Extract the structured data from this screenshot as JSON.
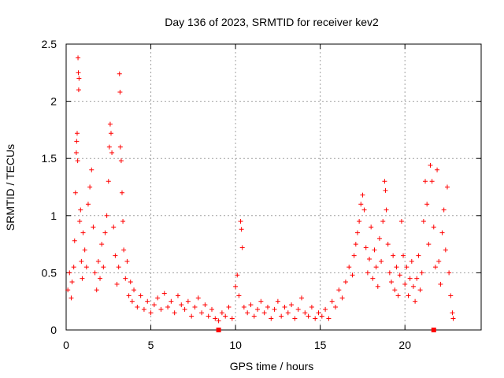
{
  "chart_data": {
    "type": "scatter",
    "title": "Day 136 of 2023, SRMTID for receiver kev2",
    "xlabel": "GPS time / hours",
    "ylabel": "SRMTID / TECUs",
    "xlim": [
      0,
      24.5
    ],
    "ylim": [
      0,
      2.5
    ],
    "x_ticks": [
      0,
      5,
      10,
      15,
      20
    ],
    "x_tick_labels": [
      "0",
      "5",
      "10",
      "15",
      "20"
    ],
    "y_ticks": [
      0,
      0.5,
      1,
      1.5,
      2,
      2.5
    ],
    "y_tick_labels": [
      "0",
      "0.5",
      "1",
      "1.5",
      "2",
      "2.5"
    ],
    "grid": true,
    "marker": "+",
    "color": "#ff0000",
    "series": [
      {
        "name": "SRMTID",
        "points": [
          [
            0.1,
            0.35
          ],
          [
            0.2,
            0.5
          ],
          [
            0.3,
            0.28
          ],
          [
            0.35,
            0.42
          ],
          [
            0.45,
            0.55
          ],
          [
            0.5,
            0.78
          ],
          [
            0.55,
            1.2
          ],
          [
            0.6,
            1.55
          ],
          [
            0.62,
            1.65
          ],
          [
            0.65,
            1.72
          ],
          [
            0.68,
            1.48
          ],
          [
            0.7,
            2.38
          ],
          [
            0.72,
            2.25
          ],
          [
            0.74,
            2.1
          ],
          [
            0.76,
            2.2
          ],
          [
            0.8,
            0.95
          ],
          [
            0.85,
            1.05
          ],
          [
            0.9,
            0.6
          ],
          [
            0.95,
            0.45
          ],
          [
            1.0,
            0.85
          ],
          [
            1.1,
            0.7
          ],
          [
            1.2,
            0.55
          ],
          [
            1.3,
            1.1
          ],
          [
            1.4,
            1.25
          ],
          [
            1.5,
            1.4
          ],
          [
            1.6,
            0.9
          ],
          [
            1.7,
            0.5
          ],
          [
            1.8,
            0.35
          ],
          [
            1.9,
            0.6
          ],
          [
            2.0,
            0.45
          ],
          [
            2.1,
            0.75
          ],
          [
            2.2,
            0.55
          ],
          [
            2.3,
            0.85
          ],
          [
            2.4,
            1.0
          ],
          [
            2.5,
            1.3
          ],
          [
            2.55,
            1.6
          ],
          [
            2.6,
            1.8
          ],
          [
            2.65,
            1.72
          ],
          [
            2.7,
            1.55
          ],
          [
            2.8,
            0.9
          ],
          [
            2.9,
            0.65
          ],
          [
            3.0,
            0.4
          ],
          [
            3.1,
            0.55
          ],
          [
            3.15,
            2.24
          ],
          [
            3.18,
            2.08
          ],
          [
            3.2,
            1.6
          ],
          [
            3.25,
            1.48
          ],
          [
            3.3,
            1.2
          ],
          [
            3.35,
            0.95
          ],
          [
            3.4,
            0.7
          ],
          [
            3.5,
            0.45
          ],
          [
            3.6,
            0.6
          ],
          [
            3.7,
            0.3
          ],
          [
            3.8,
            0.42
          ],
          [
            3.9,
            0.25
          ],
          [
            4.0,
            0.35
          ],
          [
            4.2,
            0.2
          ],
          [
            4.4,
            0.3
          ],
          [
            4.6,
            0.18
          ],
          [
            4.8,
            0.25
          ],
          [
            5.0,
            0.15
          ],
          [
            5.2,
            0.22
          ],
          [
            5.4,
            0.28
          ],
          [
            5.6,
            0.18
          ],
          [
            5.8,
            0.32
          ],
          [
            6.0,
            0.2
          ],
          [
            6.2,
            0.25
          ],
          [
            6.4,
            0.15
          ],
          [
            6.6,
            0.3
          ],
          [
            6.8,
            0.22
          ],
          [
            7.0,
            0.18
          ],
          [
            7.2,
            0.25
          ],
          [
            7.4,
            0.12
          ],
          [
            7.6,
            0.2
          ],
          [
            7.8,
            0.28
          ],
          [
            8.0,
            0.15
          ],
          [
            8.2,
            0.22
          ],
          [
            8.4,
            0.12
          ],
          [
            8.6,
            0.18
          ],
          [
            8.8,
            0.1
          ],
          [
            9.0,
            0.08
          ],
          [
            9.2,
            0.15
          ],
          [
            9.4,
            0.12
          ],
          [
            9.6,
            0.2
          ],
          [
            9.8,
            0.1
          ],
          [
            10.0,
            0.38
          ],
          [
            10.1,
            0.48
          ],
          [
            10.2,
            0.3
          ],
          [
            10.3,
            0.95
          ],
          [
            10.35,
            0.88
          ],
          [
            10.4,
            0.72
          ],
          [
            10.5,
            0.2
          ],
          [
            10.7,
            0.15
          ],
          [
            10.9,
            0.22
          ],
          [
            11.1,
            0.12
          ],
          [
            11.3,
            0.18
          ],
          [
            11.5,
            0.25
          ],
          [
            11.7,
            0.15
          ],
          [
            11.9,
            0.2
          ],
          [
            12.1,
            0.1
          ],
          [
            12.3,
            0.18
          ],
          [
            12.5,
            0.25
          ],
          [
            12.7,
            0.12
          ],
          [
            12.9,
            0.2
          ],
          [
            13.1,
            0.15
          ],
          [
            13.3,
            0.22
          ],
          [
            13.5,
            0.1
          ],
          [
            13.7,
            0.18
          ],
          [
            13.9,
            0.28
          ],
          [
            14.1,
            0.15
          ],
          [
            14.3,
            0.12
          ],
          [
            14.5,
            0.2
          ],
          [
            14.7,
            0.1
          ],
          [
            14.9,
            0.15
          ],
          [
            15.1,
            0.12
          ],
          [
            15.3,
            0.18
          ],
          [
            15.5,
            0.1
          ],
          [
            15.7,
            0.25
          ],
          [
            15.9,
            0.2
          ],
          [
            16.1,
            0.35
          ],
          [
            16.3,
            0.28
          ],
          [
            16.5,
            0.42
          ],
          [
            16.7,
            0.55
          ],
          [
            16.9,
            0.48
          ],
          [
            17.0,
            0.65
          ],
          [
            17.1,
            0.75
          ],
          [
            17.2,
            0.85
          ],
          [
            17.3,
            0.95
          ],
          [
            17.4,
            1.1
          ],
          [
            17.5,
            1.18
          ],
          [
            17.6,
            1.05
          ],
          [
            17.7,
            0.72
          ],
          [
            17.8,
            0.5
          ],
          [
            17.9,
            0.62
          ],
          [
            18.0,
            0.9
          ],
          [
            18.1,
            0.45
          ],
          [
            18.2,
            0.7
          ],
          [
            18.3,
            0.55
          ],
          [
            18.4,
            0.38
          ],
          [
            18.5,
            0.8
          ],
          [
            18.6,
            0.6
          ],
          [
            18.7,
            0.95
          ],
          [
            18.8,
            1.3
          ],
          [
            18.85,
            1.22
          ],
          [
            18.9,
            1.05
          ],
          [
            19.0,
            0.75
          ],
          [
            19.1,
            0.5
          ],
          [
            19.2,
            0.42
          ],
          [
            19.3,
            0.65
          ],
          [
            19.4,
            0.35
          ],
          [
            19.5,
            0.55
          ],
          [
            19.6,
            0.3
          ],
          [
            19.7,
            0.48
          ],
          [
            19.8,
            0.95
          ],
          [
            19.9,
            0.65
          ],
          [
            20.0,
            0.4
          ],
          [
            20.1,
            0.55
          ],
          [
            20.2,
            0.3
          ],
          [
            20.3,
            0.45
          ],
          [
            20.4,
            0.6
          ],
          [
            20.5,
            0.38
          ],
          [
            20.6,
            0.25
          ],
          [
            20.7,
            0.45
          ],
          [
            20.8,
            0.65
          ],
          [
            20.9,
            0.35
          ],
          [
            21.0,
            0.5
          ],
          [
            21.1,
            0.95
          ],
          [
            21.2,
            1.3
          ],
          [
            21.3,
            1.1
          ],
          [
            21.4,
            0.75
          ],
          [
            21.5,
            1.44
          ],
          [
            21.6,
            1.3
          ],
          [
            21.7,
            0.9
          ],
          [
            21.8,
            0.55
          ],
          [
            21.9,
            1.4
          ],
          [
            22.0,
            0.6
          ],
          [
            22.1,
            0.4
          ],
          [
            22.2,
            0.85
          ],
          [
            22.3,
            1.05
          ],
          [
            22.4,
            0.7
          ],
          [
            22.5,
            1.25
          ],
          [
            22.6,
            0.5
          ],
          [
            22.7,
            0.3
          ],
          [
            22.8,
            0.15
          ],
          [
            22.85,
            0.1
          ]
        ]
      }
    ],
    "axis_markers": [
      9.0,
      21.7
    ]
  }
}
